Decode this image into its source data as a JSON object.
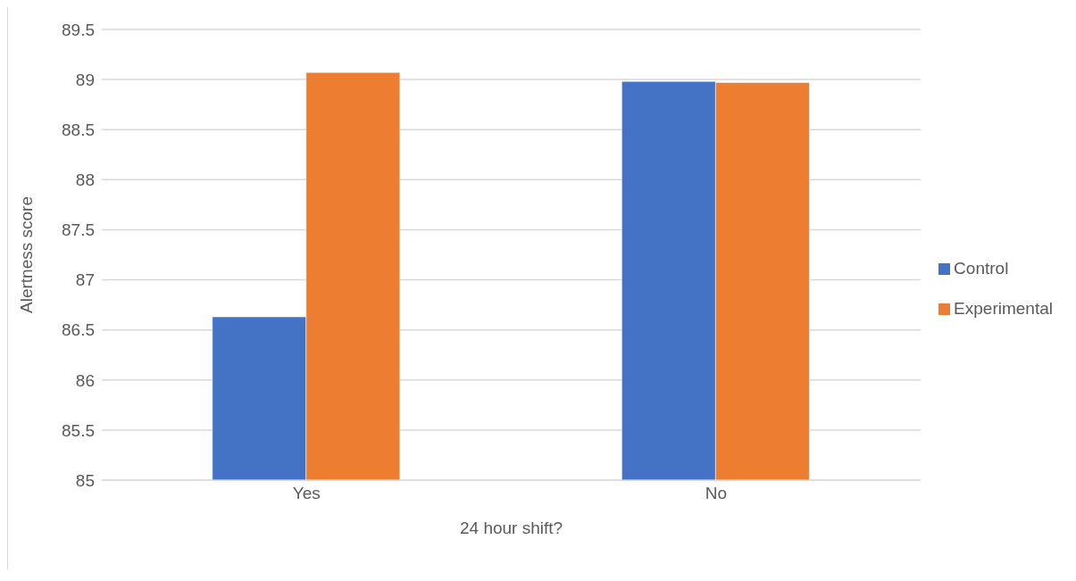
{
  "chart_data": {
    "type": "bar",
    "xlabel": "24 hour shift?",
    "ylabel": "Alertness score",
    "categories": [
      "Yes",
      "No"
    ],
    "series": [
      {
        "name": "Control",
        "color": "#4472c4",
        "values": [
          86.63,
          88.98
        ]
      },
      {
        "name": "Experimental",
        "color": "#ed7d31",
        "values": [
          89.07,
          88.97
        ]
      }
    ],
    "ylim": [
      85,
      89.5
    ],
    "yticks": [
      85,
      85.5,
      86,
      86.5,
      87,
      87.5,
      88,
      88.5,
      89,
      89.5
    ],
    "grid": "y",
    "legend": "right"
  }
}
